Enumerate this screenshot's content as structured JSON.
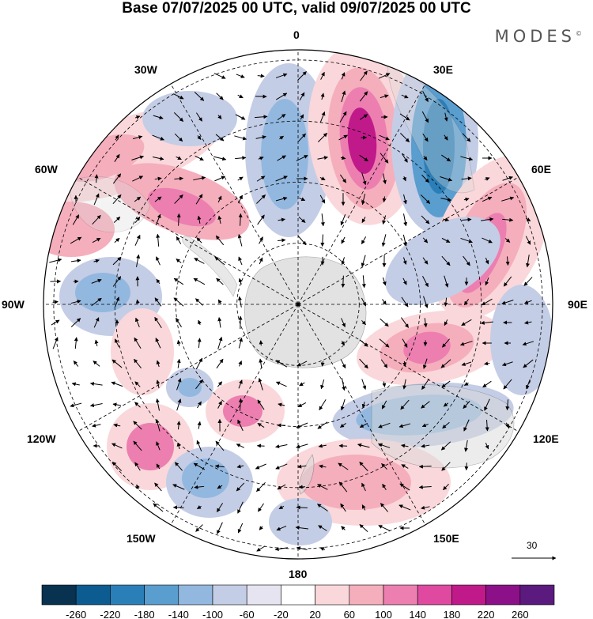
{
  "title": "Base 07/07/2025 00 UTC, valid 09/07/2025 00 UTC",
  "logo": "MODES",
  "logo_mark": "©",
  "longitude_labels": {
    "lon_0": "0",
    "lon_30e": "30E",
    "lon_60e": "60E",
    "lon_90e": "90E",
    "lon_120e": "120E",
    "lon_150e": "150E",
    "lon_180": "180",
    "lon_150w": "150W",
    "lon_120w": "120W",
    "lon_90w": "90W",
    "lon_60w": "60W",
    "lon_30w": "30W"
  },
  "reference_vector": {
    "label": "30"
  },
  "colorbar": {
    "colors": [
      "#08324f",
      "#0d5c91",
      "#2a7fb8",
      "#5a9dcf",
      "#93b8df",
      "#c4cde6",
      "#e6e4f1",
      "#ffffff",
      "#fad7da",
      "#f5aebc",
      "#ec7fb0",
      "#df4aa0",
      "#c01a8a",
      "#8c1189",
      "#5a1a7e"
    ],
    "tick_labels": [
      "-260",
      "-220",
      "-180",
      "-140",
      "-100",
      "-60",
      "-20",
      "20",
      "60",
      "100",
      "140",
      "180",
      "220",
      "260"
    ]
  },
  "anomaly_colors": {
    "strong_positive": "#c01a8a",
    "positive": "#ec7fb0",
    "weak_positive": "#f5aebc",
    "faint_positive": "#fad7da",
    "strong_negative": "#2a7fb8",
    "negative": "#5a9dcf",
    "weak_negative": "#93b8df",
    "faint_negative": "#c4cde6",
    "neutral": "#ffffff",
    "land_shade": "#d9d9d9"
  }
}
